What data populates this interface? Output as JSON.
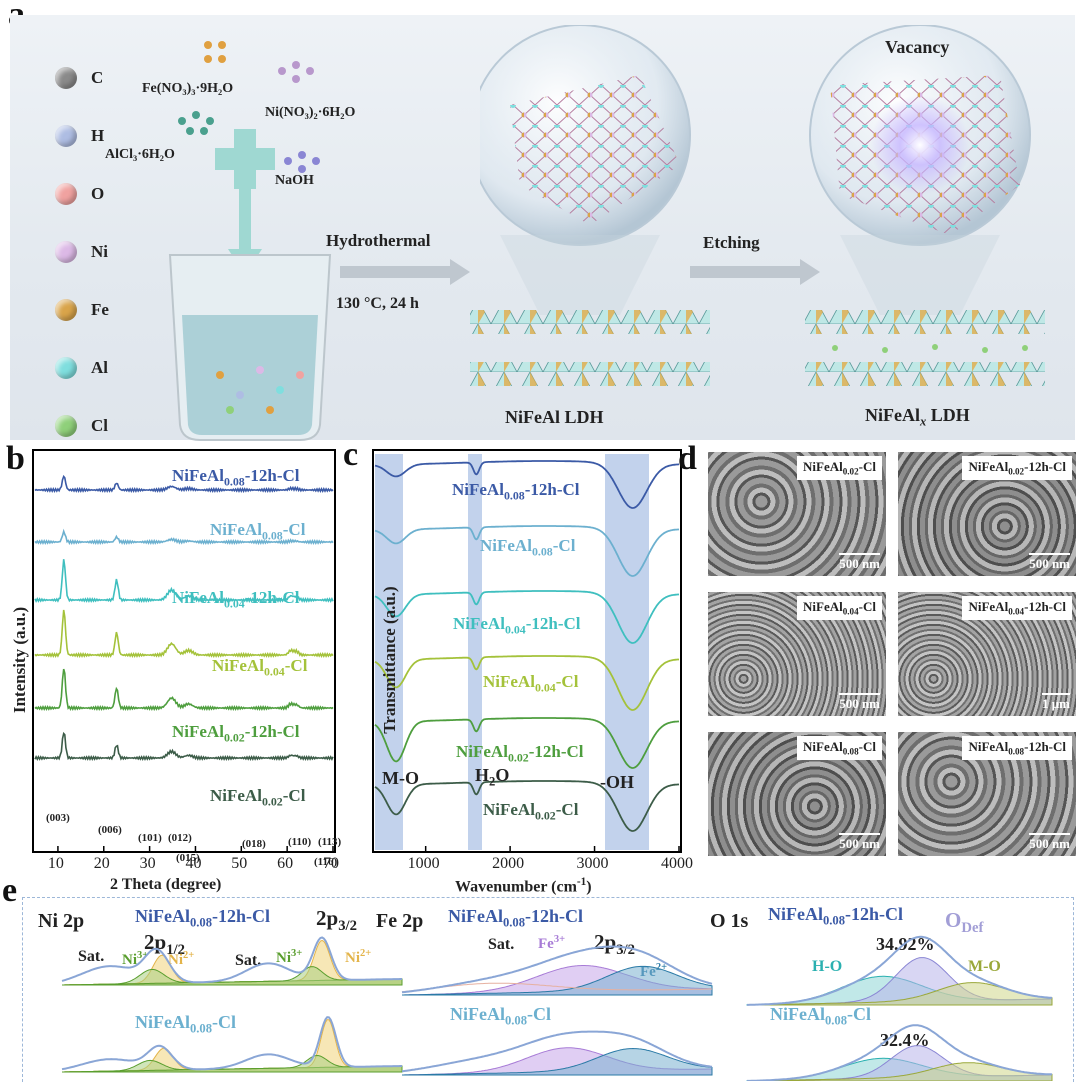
{
  "panel_labels": {
    "a": "a",
    "b": "b",
    "c": "c",
    "d": "d",
    "e": "e"
  },
  "panel_a": {
    "legend": [
      {
        "label": "C",
        "color": "#8a8a8a"
      },
      {
        "label": "H",
        "color": "#aebde3"
      },
      {
        "label": "O",
        "color": "#f0a2a0"
      },
      {
        "label": "Ni",
        "color": "#dcb9e6"
      },
      {
        "label": "Fe",
        "color": "#d9a44a"
      },
      {
        "label": "Al",
        "color": "#7fdede"
      },
      {
        "label": "Cl",
        "color": "#8fd07a"
      }
    ],
    "reagents": {
      "fe": "Fe(NO₃)₃·9H₂O",
      "ni": "Ni(NO₃)₂·6H₂O",
      "al": "AlCl₃·6H₂O",
      "naoh": "NaOH"
    },
    "step1": {
      "name": "Hydrothermal",
      "condition": "130 °C, 24 h"
    },
    "step2": {
      "name": "Etching"
    },
    "product1": "NiFeAl LDH",
    "product2_main": "NiFeAl",
    "product2_sub": "x",
    "product2_suffix": " LDH",
    "vacancy": "Vacancy"
  },
  "panel_b": {
    "ylabel": "Intensity (a.u.)",
    "xlabel": "2 Theta (degree)",
    "xticks": [
      "10",
      "20",
      "30",
      "40",
      "50",
      "60",
      "70"
    ],
    "peaks": [
      "(003)",
      "(006)",
      "(101)",
      "(012)",
      "(015)",
      "(018)",
      "(110)",
      "(113)",
      "(116)"
    ],
    "series": [
      {
        "base": "NiFeAl",
        "sub": "0.08",
        "suffix": "-12h-Cl",
        "color": "#3b5aa6"
      },
      {
        "base": "NiFeAl",
        "sub": "0.08",
        "suffix": "-Cl",
        "color": "#6cb0cf"
      },
      {
        "base": "NiFeAl",
        "sub": "0.04",
        "suffix": "-12h-Cl",
        "color": "#3fbfbf"
      },
      {
        "base": "NiFeAl",
        "sub": "0.04",
        "suffix": "-Cl",
        "color": "#a4c23a"
      },
      {
        "base": "NiFeAl",
        "sub": "0.02",
        "suffix": "-12h-Cl",
        "color": "#4e9e3e"
      },
      {
        "base": "NiFeAl",
        "sub": "0.02",
        "suffix": "-Cl",
        "color": "#3c5c48"
      }
    ]
  },
  "panel_c": {
    "ylabel": "Transmittance (a.u.)",
    "xlabel_main": "Wavenumber (cm",
    "xlabel_sup": "-1",
    "xlabel_end": ")",
    "xticks": [
      "1000",
      "2000",
      "3000",
      "4000"
    ],
    "bands": {
      "mo": "M-O",
      "h2o_main": "H",
      "h2o_sub": "2",
      "h2o_end": "O",
      "oh": "-OH"
    },
    "series": [
      {
        "base": "NiFeAl",
        "sub": "0.08",
        "suffix": "-12h-Cl",
        "color": "#3b5aa6"
      },
      {
        "base": "NiFeAl",
        "sub": "0.08",
        "suffix": "-Cl",
        "color": "#6cb0cf"
      },
      {
        "base": "NiFeAl",
        "sub": "0.04",
        "suffix": "-12h-Cl",
        "color": "#3fbfbf"
      },
      {
        "base": "NiFeAl",
        "sub": "0.04",
        "suffix": "-Cl",
        "color": "#a4c23a"
      },
      {
        "base": "NiFeAl",
        "sub": "0.02",
        "suffix": "-12h-Cl",
        "color": "#4e9e3e"
      },
      {
        "base": "NiFeAl",
        "sub": "0.02",
        "suffix": "-Cl",
        "color": "#3c5c48"
      }
    ]
  },
  "panel_d": {
    "images": [
      {
        "base": "NiFeAl",
        "sub": "0.02",
        "suffix": "-Cl",
        "scale": "500 nm"
      },
      {
        "base": "NiFeAl",
        "sub": "0.02",
        "suffix": "-12h-Cl",
        "scale": "500 nm"
      },
      {
        "base": "NiFeAl",
        "sub": "0.04",
        "suffix": "-Cl",
        "scale": "500 nm"
      },
      {
        "base": "NiFeAl",
        "sub": "0.04",
        "suffix": "-12h-Cl",
        "scale": "1 μm"
      },
      {
        "base": "NiFeAl",
        "sub": "0.08",
        "suffix": "-Cl",
        "scale": "500 nm"
      },
      {
        "base": "NiFeAl",
        "sub": "0.08",
        "suffix": "-12h-Cl",
        "scale": "500 nm"
      }
    ]
  },
  "panel_e": {
    "ni_title": "Ni 2p",
    "fe_title": "Fe 2p",
    "o_title": "O 1s",
    "sample_top": {
      "base": "NiFeAl",
      "sub": "0.08",
      "suffix": "-12h-Cl"
    },
    "sample_bottom": {
      "base": "NiFeAl",
      "sub": "0.08",
      "suffix": "-Cl"
    },
    "ni_labels": {
      "p12": "2p",
      "p12_sub": "1/2",
      "p32": "2p",
      "p32_sub": "3/2",
      "sat": "Sat.",
      "ni3": "Ni",
      "ni3_sup": "3+",
      "ni2": "Ni",
      "ni2_sup": "2+"
    },
    "fe_labels": {
      "sat": "Sat.",
      "fe3": "Fe",
      "fe3_sup": "3+",
      "fe2": "Fe",
      "fe2_sup": "2+",
      "p32": "2p",
      "p32_sub": "3/2"
    },
    "o_labels": {
      "odef": "O",
      "odef_sub": "Def",
      "ho": "H-O",
      "mo": "M-O",
      "pct_top": "34.92%",
      "pct_bottom": "32.4%"
    }
  }
}
